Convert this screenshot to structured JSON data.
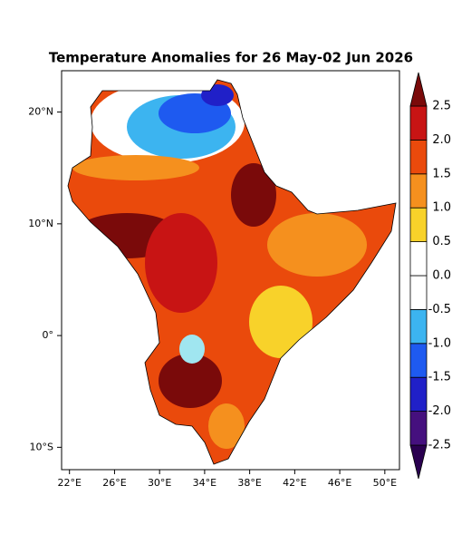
{
  "chart_data": {
    "type": "map",
    "title": "Temperature Anomalies for 26 May-02 Jun 2026",
    "xlim": [
      21.3,
      51.3
    ],
    "ylim": [
      -12,
      23.7
    ],
    "xticks": [
      {
        "value": 22,
        "label": "22°E"
      },
      {
        "value": 26,
        "label": "26°E"
      },
      {
        "value": 30,
        "label": "30°E"
      },
      {
        "value": 34,
        "label": "34°E"
      },
      {
        "value": 38,
        "label": "38°E"
      },
      {
        "value": 42,
        "label": "42°E"
      },
      {
        "value": 46,
        "label": "46°E"
      },
      {
        "value": 50,
        "label": "50°E"
      }
    ],
    "yticks": [
      {
        "value": -10,
        "label": "10°S"
      },
      {
        "value": 0,
        "label": "0°"
      },
      {
        "value": 10,
        "label": "10°N"
      },
      {
        "value": 20,
        "label": "20°N"
      }
    ],
    "colorbar": {
      "levels": [
        -2.5,
        {
          "value": -2,
          "label": "-2.0"
        },
        -1.5,
        {
          "value": -1,
          "label": "-1.0"
        },
        -0.5,
        {
          "value": 0,
          "label": "0.0"
        },
        0.5,
        {
          "value": 1,
          "label": "1.0"
        },
        1.5,
        {
          "value": 2,
          "label": "2.0"
        },
        2.5
      ],
      "colors": [
        "#2a0050",
        "#45107e",
        "#2020c8",
        "#1e5af0",
        "#3cb4f0",
        "#ffffff",
        "#ffffff",
        "#f8d22a",
        "#f5901e",
        "#ea4a0c",
        "#c81414",
        "#7a0a0a"
      ]
    }
  }
}
